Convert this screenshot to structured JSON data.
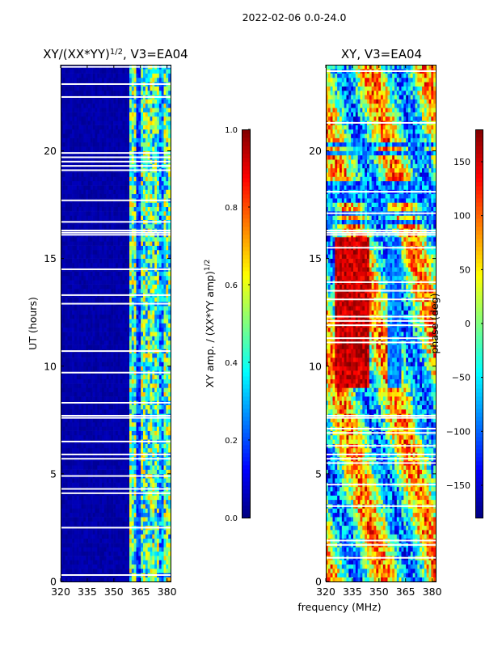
{
  "suptitle": "2022-02-06 0.0-24.0",
  "shared_xlabel": "frequency (MHz)",
  "chart_data": [
    {
      "type": "heatmap",
      "title_main": "XY/(XX*YY)",
      "title_exp": "1/2",
      "title_tail": ", V3=EA04",
      "ylabel": "UT (hours)",
      "xlim": [
        320,
        382
      ],
      "ylim": [
        0,
        24
      ],
      "xticks": [
        320,
        335,
        350,
        365,
        380
      ],
      "yticks": [
        0,
        5,
        10,
        15,
        20
      ],
      "grid": false,
      "colorbar": {
        "label_main": "XY amp. / (XX*YY amp)",
        "label_exp": "1/2",
        "range": [
          0.0,
          1.0
        ],
        "ticks": [
          "0.0",
          "0.2",
          "0.4",
          "0.6",
          "0.8",
          "1.0"
        ],
        "colormap": "jet"
      },
      "pattern": "amplitude",
      "low_region_mhz": [
        320,
        359
      ],
      "low_value": 0.02,
      "high_region_mhz": [
        359,
        382
      ],
      "high_value_range": [
        0.2,
        0.7
      ],
      "flagged_hours": [
        7.6,
        7.7,
        16.1,
        16.2,
        16.3
      ]
    },
    {
      "type": "heatmap",
      "title": "XY, V3=EA04",
      "ylabel": "phase (deg)",
      "xlim": [
        320,
        382
      ],
      "ylim": [
        0,
        24
      ],
      "xticks": [
        320,
        335,
        350,
        365,
        380
      ],
      "yticks": [
        0,
        5,
        10,
        15,
        20
      ],
      "grid": false,
      "colorbar": {
        "range": [
          -180,
          180
        ],
        "ticks": [
          "−150",
          "−100",
          "−50",
          "0",
          "50",
          "100",
          "150"
        ],
        "tick_values": [
          -150,
          -100,
          -50,
          0,
          50,
          100,
          150
        ],
        "colormap": "jet"
      },
      "pattern": "phase",
      "value_range": [
        -180,
        180
      ],
      "flagged_hours": [
        7.6,
        7.7,
        16.1,
        16.2,
        16.3
      ]
    }
  ]
}
